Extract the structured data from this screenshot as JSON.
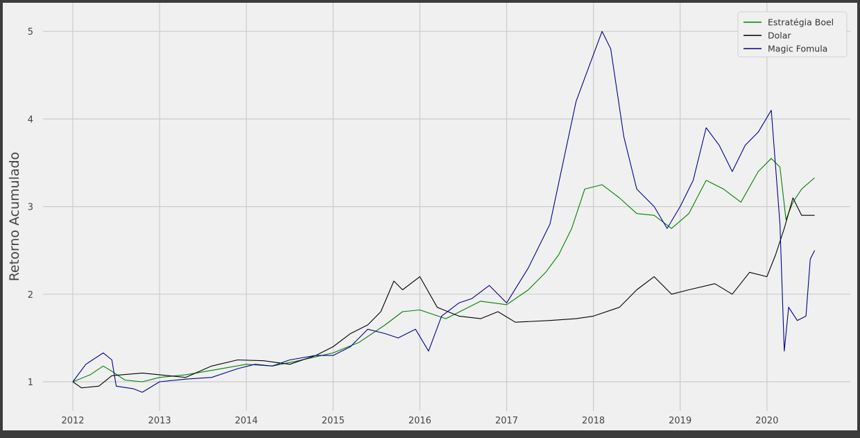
{
  "header": {
    "cut_text": ""
  },
  "chart_data": {
    "type": "line",
    "title": "",
    "xlabel": "",
    "ylabel": "Retorno Acumulado",
    "xlim": [
      2011.75,
      2020.95
    ],
    "ylim": [
      0.75,
      5.2
    ],
    "x_ticks": [
      2012,
      2013,
      2014,
      2015,
      2016,
      2017,
      2018,
      2019,
      2020
    ],
    "y_ticks": [
      1,
      2,
      3,
      4,
      5
    ],
    "grid": true,
    "legend_position": "top-right",
    "colors": {
      "background": "#f0f0f0",
      "grid": "#cbcbcb",
      "frame": "#3c3c3c"
    },
    "series": [
      {
        "name": "Estratégia Boel",
        "color": "#008000",
        "x": [
          2012.0,
          2012.2,
          2012.35,
          2012.45,
          2012.6,
          2012.8,
          2013.0,
          2013.3,
          2013.6,
          2014.0,
          2014.3,
          2014.6,
          2015.0,
          2015.3,
          2015.6,
          2015.8,
          2016.0,
          2016.3,
          2016.5,
          2016.7,
          2017.0,
          2017.25,
          2017.45,
          2017.6,
          2017.75,
          2017.9,
          2018.1,
          2018.3,
          2018.5,
          2018.7,
          2018.9,
          2019.1,
          2019.3,
          2019.5,
          2019.7,
          2019.9,
          2020.05,
          2020.15,
          2020.22,
          2020.3,
          2020.4,
          2020.55
        ],
        "y": [
          1.0,
          1.08,
          1.18,
          1.12,
          1.02,
          1.0,
          1.05,
          1.08,
          1.13,
          1.2,
          1.18,
          1.24,
          1.33,
          1.45,
          1.65,
          1.8,
          1.82,
          1.72,
          1.82,
          1.92,
          1.88,
          2.05,
          2.25,
          2.45,
          2.75,
          3.2,
          3.25,
          3.1,
          2.92,
          2.9,
          2.75,
          2.92,
          3.3,
          3.2,
          3.05,
          3.4,
          3.55,
          3.45,
          2.85,
          3.05,
          3.2,
          3.33
        ]
      },
      {
        "name": "Dolar",
        "color": "#000000",
        "x": [
          2012.0,
          2012.1,
          2012.3,
          2012.45,
          2012.8,
          2013.0,
          2013.3,
          2013.6,
          2013.9,
          2014.2,
          2014.5,
          2014.8,
          2015.0,
          2015.2,
          2015.4,
          2015.55,
          2015.7,
          2015.8,
          2016.0,
          2016.2,
          2016.45,
          2016.7,
          2016.9,
          2017.1,
          2017.5,
          2017.8,
          2018.0,
          2018.3,
          2018.5,
          2018.7,
          2018.9,
          2019.1,
          2019.4,
          2019.6,
          2019.8,
          2020.0,
          2020.1,
          2020.2,
          2020.3,
          2020.4,
          2020.55
        ],
        "y": [
          1.0,
          0.93,
          0.95,
          1.07,
          1.1,
          1.08,
          1.05,
          1.18,
          1.25,
          1.24,
          1.2,
          1.3,
          1.4,
          1.55,
          1.65,
          1.8,
          2.15,
          2.05,
          2.2,
          1.85,
          1.75,
          1.72,
          1.8,
          1.68,
          1.7,
          1.72,
          1.75,
          1.85,
          2.05,
          2.2,
          2.0,
          2.05,
          2.12,
          2.0,
          2.25,
          2.2,
          2.45,
          2.75,
          3.1,
          2.9,
          2.9
        ]
      },
      {
        "name": "Magic Fomula",
        "color": "#00008b",
        "x": [
          2012.0,
          2012.15,
          2012.35,
          2012.45,
          2012.5,
          2012.7,
          2012.8,
          2013.0,
          2013.3,
          2013.6,
          2013.9,
          2014.1,
          2014.3,
          2014.5,
          2014.8,
          2015.0,
          2015.2,
          2015.4,
          2015.6,
          2015.75,
          2015.95,
          2016.1,
          2016.25,
          2016.45,
          2016.6,
          2016.8,
          2017.0,
          2017.25,
          2017.5,
          2017.65,
          2017.8,
          2017.95,
          2018.1,
          2018.2,
          2018.35,
          2018.5,
          2018.7,
          2018.85,
          2019.0,
          2019.15,
          2019.3,
          2019.45,
          2019.6,
          2019.75,
          2019.9,
          2020.05,
          2020.15,
          2020.2,
          2020.25,
          2020.35,
          2020.45,
          2020.5,
          2020.55
        ],
        "y": [
          1.0,
          1.2,
          1.33,
          1.25,
          0.95,
          0.92,
          0.88,
          1.0,
          1.03,
          1.05,
          1.15,
          1.2,
          1.18,
          1.25,
          1.3,
          1.3,
          1.4,
          1.6,
          1.55,
          1.5,
          1.6,
          1.35,
          1.75,
          1.9,
          1.95,
          2.1,
          1.9,
          2.3,
          2.8,
          3.5,
          4.2,
          4.6,
          5.0,
          4.8,
          3.8,
          3.2,
          3.0,
          2.75,
          3.0,
          3.3,
          3.9,
          3.7,
          3.4,
          3.7,
          3.85,
          4.1,
          2.8,
          1.35,
          1.85,
          1.7,
          1.75,
          2.4,
          2.5
        ]
      }
    ]
  }
}
